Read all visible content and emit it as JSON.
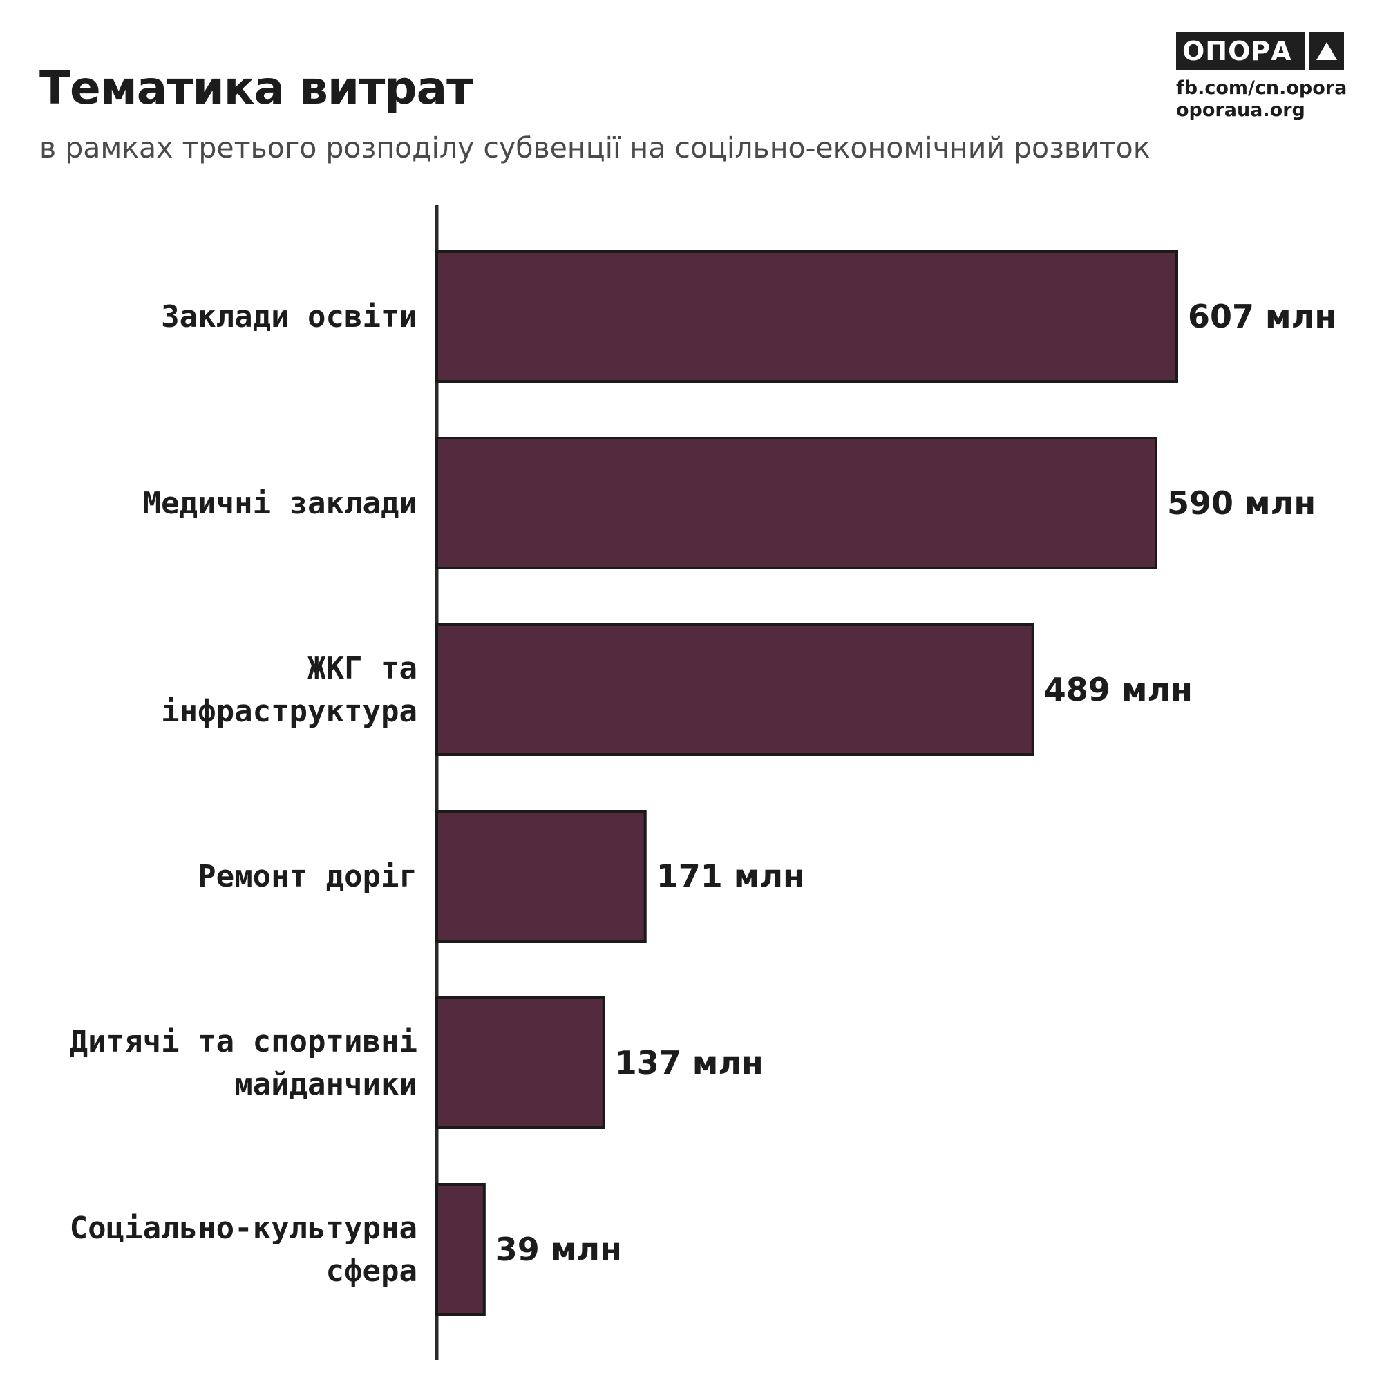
{
  "header": {
    "title": "Тематика витрат",
    "subtitle": "в рамках третього розподілу субвенції на соцільно-економічний розвиток"
  },
  "logo": {
    "name": "ОПОРА",
    "links": [
      "fb.com/cn.opora",
      "oporaua.org"
    ]
  },
  "colors": {
    "bar_fill": "#532a3e",
    "bar_stroke": "#1a1a1a",
    "axis": "#2a2a2a",
    "text": "#1c1c1c"
  },
  "chart_data": {
    "type": "bar",
    "orientation": "horizontal",
    "categories": [
      [
        "Заклади освіти"
      ],
      [
        "Медичні заклади"
      ],
      [
        "ЖКГ та",
        "інфраструктура"
      ],
      [
        "Ремонт доріг"
      ],
      [
        "Дитячі та спортивні",
        "майданчики"
      ],
      [
        "Соціально-культурна",
        "сфера"
      ]
    ],
    "values": [
      607,
      590,
      489,
      171,
      137,
      39
    ],
    "value_labels": [
      "607 млн",
      "590 млн",
      "489 млн",
      "171 млн",
      "137 млн",
      "39 млн"
    ],
    "unit": "млн",
    "grid": false,
    "legend": "none"
  }
}
